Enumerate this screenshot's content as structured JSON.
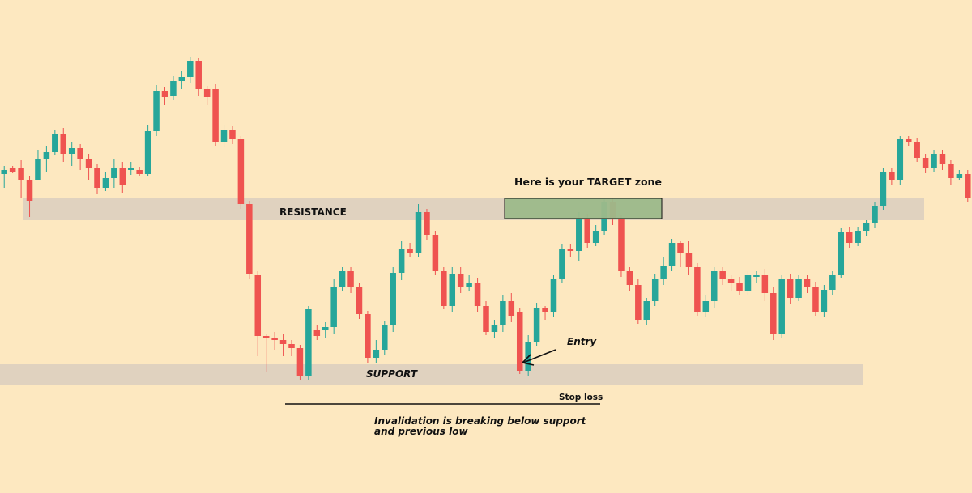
{
  "colors": {
    "background": "#fde8c0",
    "up": "#26a69a",
    "down": "#ef5350",
    "zone_band": "#e0d2bf",
    "target_fill": "#9cb98a",
    "target_border": "#111111",
    "line": "#111111"
  },
  "labels": {
    "resistance": "RESISTANCE",
    "support": "SUPPORT",
    "target": "Here is your TARGET zone",
    "entry": "Entry",
    "stop_loss": "Stop loss",
    "invalidation_line1": "Invalidation is breaking below support",
    "invalidation_line2": "and previous low"
  },
  "chart_data": {
    "type": "candlestick",
    "title": "",
    "xlabel": "",
    "ylabel": "",
    "ylim": [
      0,
      609
    ],
    "y_axis_inverted": true,
    "grid": false,
    "legend": "none",
    "zones": {
      "resistance": [
        245,
        272
      ],
      "support": [
        450,
        476
      ],
      "target": [
        245,
        270
      ]
    },
    "stop_loss_level": 500,
    "candles": [
      [
        215,
        210,
        232,
        205
      ],
      [
        208,
        212,
        214,
        205
      ],
      [
        207,
        222,
        245,
        198
      ],
      [
        222,
        248,
        268,
        218
      ],
      [
        222,
        196,
        222,
        185
      ],
      [
        196,
        188,
        212,
        180
      ],
      [
        188,
        165,
        192,
        160
      ],
      [
        165,
        190,
        200,
        158
      ],
      [
        190,
        183,
        205,
        175
      ],
      [
        183,
        196,
        210,
        178
      ],
      [
        196,
        208,
        222,
        190
      ],
      [
        208,
        232,
        240,
        202
      ],
      [
        232,
        220,
        236,
        212
      ],
      [
        220,
        208,
        232,
        196
      ],
      [
        208,
        228,
        238,
        200
      ],
      [
        210,
        208,
        216,
        200
      ],
      [
        210,
        215,
        218,
        206
      ],
      [
        215,
        162,
        218,
        155
      ],
      [
        162,
        113,
        168,
        105
      ],
      [
        113,
        120,
        130,
        108
      ],
      [
        118,
        100,
        124,
        94
      ],
      [
        100,
        95,
        110,
        88
      ],
      [
        95,
        75,
        102,
        70
      ],
      [
        75,
        110,
        118,
        72
      ],
      [
        110,
        120,
        130,
        106
      ],
      [
        110,
        175,
        180,
        104
      ],
      [
        175,
        160,
        182,
        155
      ],
      [
        160,
        172,
        178,
        156
      ],
      [
        172,
        252,
        258,
        168
      ],
      [
        252,
        338,
        345,
        248
      ],
      [
        340,
        415,
        440,
        335
      ],
      [
        415,
        418,
        460,
        412
      ],
      [
        418,
        420,
        432,
        410
      ],
      [
        420,
        425,
        440,
        412
      ],
      [
        425,
        430,
        440,
        420
      ],
      [
        430,
        465,
        470,
        426
      ],
      [
        465,
        382,
        470,
        378
      ],
      [
        408,
        415,
        420,
        402
      ],
      [
        408,
        404,
        418,
        398
      ],
      [
        404,
        355,
        412,
        345
      ],
      [
        355,
        335,
        360,
        330
      ],
      [
        335,
        355,
        362,
        330
      ],
      [
        355,
        388,
        394,
        350
      ],
      [
        388,
        442,
        448,
        384
      ],
      [
        442,
        432,
        448,
        420
      ],
      [
        432,
        402,
        438,
        396
      ],
      [
        402,
        337,
        410,
        330
      ],
      [
        337,
        308,
        346,
        298
      ],
      [
        308,
        312,
        318,
        300
      ],
      [
        312,
        262,
        318,
        252
      ],
      [
        262,
        290,
        296,
        258
      ],
      [
        290,
        335,
        340,
        285
      ],
      [
        335,
        378,
        382,
        330
      ],
      [
        378,
        338,
        385,
        330
      ],
      [
        338,
        355,
        362,
        330
      ],
      [
        355,
        350,
        360,
        340
      ],
      [
        350,
        378,
        385,
        344
      ],
      [
        378,
        410,
        414,
        372
      ],
      [
        410,
        402,
        418,
        395
      ],
      [
        402,
        372,
        410,
        365
      ],
      [
        372,
        390,
        398,
        362
      ],
      [
        385,
        458,
        462,
        380
      ],
      [
        458,
        422,
        465,
        414
      ],
      [
        422,
        380,
        428,
        374
      ],
      [
        380,
        385,
        395,
        378
      ],
      [
        385,
        345,
        392,
        340
      ],
      [
        345,
        308,
        350,
        302
      ],
      [
        308,
        310,
        318,
        302
      ],
      [
        310,
        270,
        322,
        262
      ],
      [
        270,
        300,
        306,
        264
      ],
      [
        300,
        285,
        304,
        278
      ],
      [
        285,
        250,
        290,
        246
      ],
      [
        250,
        270,
        278,
        244
      ],
      [
        270,
        335,
        342,
        266
      ],
      [
        335,
        352,
        360,
        330
      ],
      [
        352,
        395,
        400,
        345
      ],
      [
        395,
        372,
        402,
        368
      ],
      [
        372,
        345,
        378,
        338
      ],
      [
        345,
        328,
        352,
        318
      ],
      [
        328,
        300,
        335,
        295
      ],
      [
        300,
        312,
        330,
        298
      ],
      [
        312,
        330,
        340,
        298
      ],
      [
        330,
        385,
        390,
        325
      ],
      [
        385,
        372,
        392,
        365
      ],
      [
        372,
        335,
        380,
        330
      ],
      [
        335,
        345,
        352,
        330
      ],
      [
        345,
        350,
        360,
        340
      ],
      [
        350,
        360,
        365,
        342
      ],
      [
        360,
        340,
        365,
        335
      ],
      [
        340,
        340,
        350,
        335
      ],
      [
        340,
        362,
        372,
        332
      ],
      [
        362,
        412,
        420,
        355
      ],
      [
        412,
        345,
        418,
        340
      ],
      [
        345,
        368,
        375,
        338
      ],
      [
        368,
        345,
        372,
        340
      ],
      [
        345,
        355,
        362,
        340
      ],
      [
        355,
        385,
        390,
        348
      ],
      [
        385,
        358,
        392,
        352
      ],
      [
        358,
        340,
        365,
        335
      ],
      [
        340,
        286,
        344,
        282
      ],
      [
        286,
        300,
        306,
        280
      ],
      [
        300,
        285,
        304,
        280
      ],
      [
        285,
        276,
        292,
        272
      ],
      [
        276,
        255,
        282,
        250
      ],
      [
        255,
        212,
        260,
        208
      ],
      [
        212,
        222,
        228,
        208
      ],
      [
        222,
        172,
        228,
        168
      ],
      [
        172,
        175,
        180,
        168
      ],
      [
        175,
        195,
        200,
        170
      ],
      [
        195,
        208,
        214,
        190
      ],
      [
        208,
        190,
        212,
        185
      ],
      [
        190,
        202,
        210,
        185
      ],
      [
        202,
        220,
        228,
        198
      ],
      [
        220,
        215,
        222,
        210
      ],
      [
        215,
        245,
        250,
        210
      ]
    ]
  }
}
